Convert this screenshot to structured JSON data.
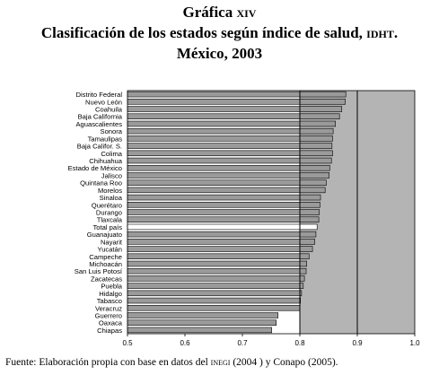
{
  "header": {
    "line1_main": "Gráfica",
    "line1_roman": "xiv",
    "line2_main": "Clasificación de los estados según índice de salud,",
    "line2_sc": "idht.",
    "line3": "México, 2003"
  },
  "footer": {
    "prefix": "Fuente: Elaboración propia con base en datos del",
    "inegi": "inegi",
    "suffix": "(2004 ) y Conapo (2005)."
  },
  "colors": {
    "bar": "#9a9a9a",
    "highlight_bar": "#ffffff",
    "background_region": "#b4b4b4",
    "plot_background": "#ffffff",
    "reference_line": "#000000"
  },
  "chart_data": {
    "type": "bar",
    "orientation": "horizontal",
    "categories": [
      "Distrito Federal",
      "Nuevo León",
      "Coahuila",
      "Baja California",
      "Aguascalientes",
      "Sonora",
      "Tamaulipas",
      "Baja Califor. S.",
      "Colima",
      "Chihuahua",
      "Estado de México",
      "Jalisco",
      "Quintana Roo",
      "Morelos",
      "Sinaloa",
      "Querétaro",
      "Durango",
      "Tlaxcala",
      "Total país",
      "Guanajuato",
      "Nayarit",
      "Yucatán",
      "Campeche",
      "Michoacán",
      "San Luis Potosí",
      "Zacatecas",
      "Puebla",
      "Hidalgo",
      "Tabasco",
      "Veracruz",
      "Guerrero",
      "Oaxaca",
      "Chiapas"
    ],
    "values": [
      0.88,
      0.879,
      0.873,
      0.869,
      0.862,
      0.858,
      0.857,
      0.856,
      0.857,
      0.855,
      0.852,
      0.851,
      0.846,
      0.844,
      0.836,
      0.835,
      0.834,
      0.833,
      0.83,
      0.828,
      0.826,
      0.822,
      0.816,
      0.812,
      0.811,
      0.808,
      0.806,
      0.803,
      0.801,
      0.8,
      0.762,
      0.759,
      0.751
    ],
    "highlight_category": "Total país",
    "xlim": [
      0.5,
      1.0
    ],
    "xticks": [
      "0.5",
      "0.6",
      "0.7",
      "0.8",
      "0.9",
      "1.0"
    ],
    "shaded_range": [
      0.8,
      1.0
    ],
    "reference_lines": [
      0.8,
      0.9
    ],
    "title": "",
    "xlabel": "",
    "ylabel": "",
    "legend": "none",
    "grid": false
  }
}
